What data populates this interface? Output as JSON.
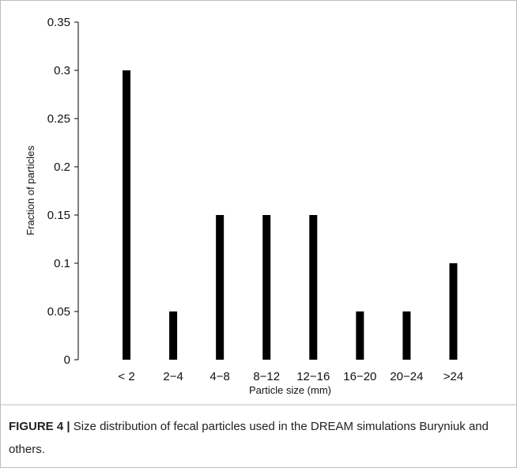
{
  "chart_data": {
    "type": "bar",
    "xlabel": "Particle size (mm)",
    "ylabel": "Fraction of particles",
    "categories": [
      "< 2",
      "2−4",
      "4−8",
      "8−12",
      "12−16",
      "16−20",
      "20−24",
      ">24"
    ],
    "values": [
      0.3,
      0.05,
      0.15,
      0.15,
      0.15,
      0.05,
      0.05,
      0.1
    ],
    "color": "#000000",
    "ylim": [
      0,
      0.35
    ],
    "yticks": [
      0,
      0.05,
      0.1,
      0.15,
      0.2,
      0.25,
      0.3,
      0.35
    ],
    "grid": false
  },
  "caption": {
    "label": "FIGURE 4 |",
    "text": "Size distribution of fecal particles used in the DREAM simulations Buryniuk and others."
  }
}
